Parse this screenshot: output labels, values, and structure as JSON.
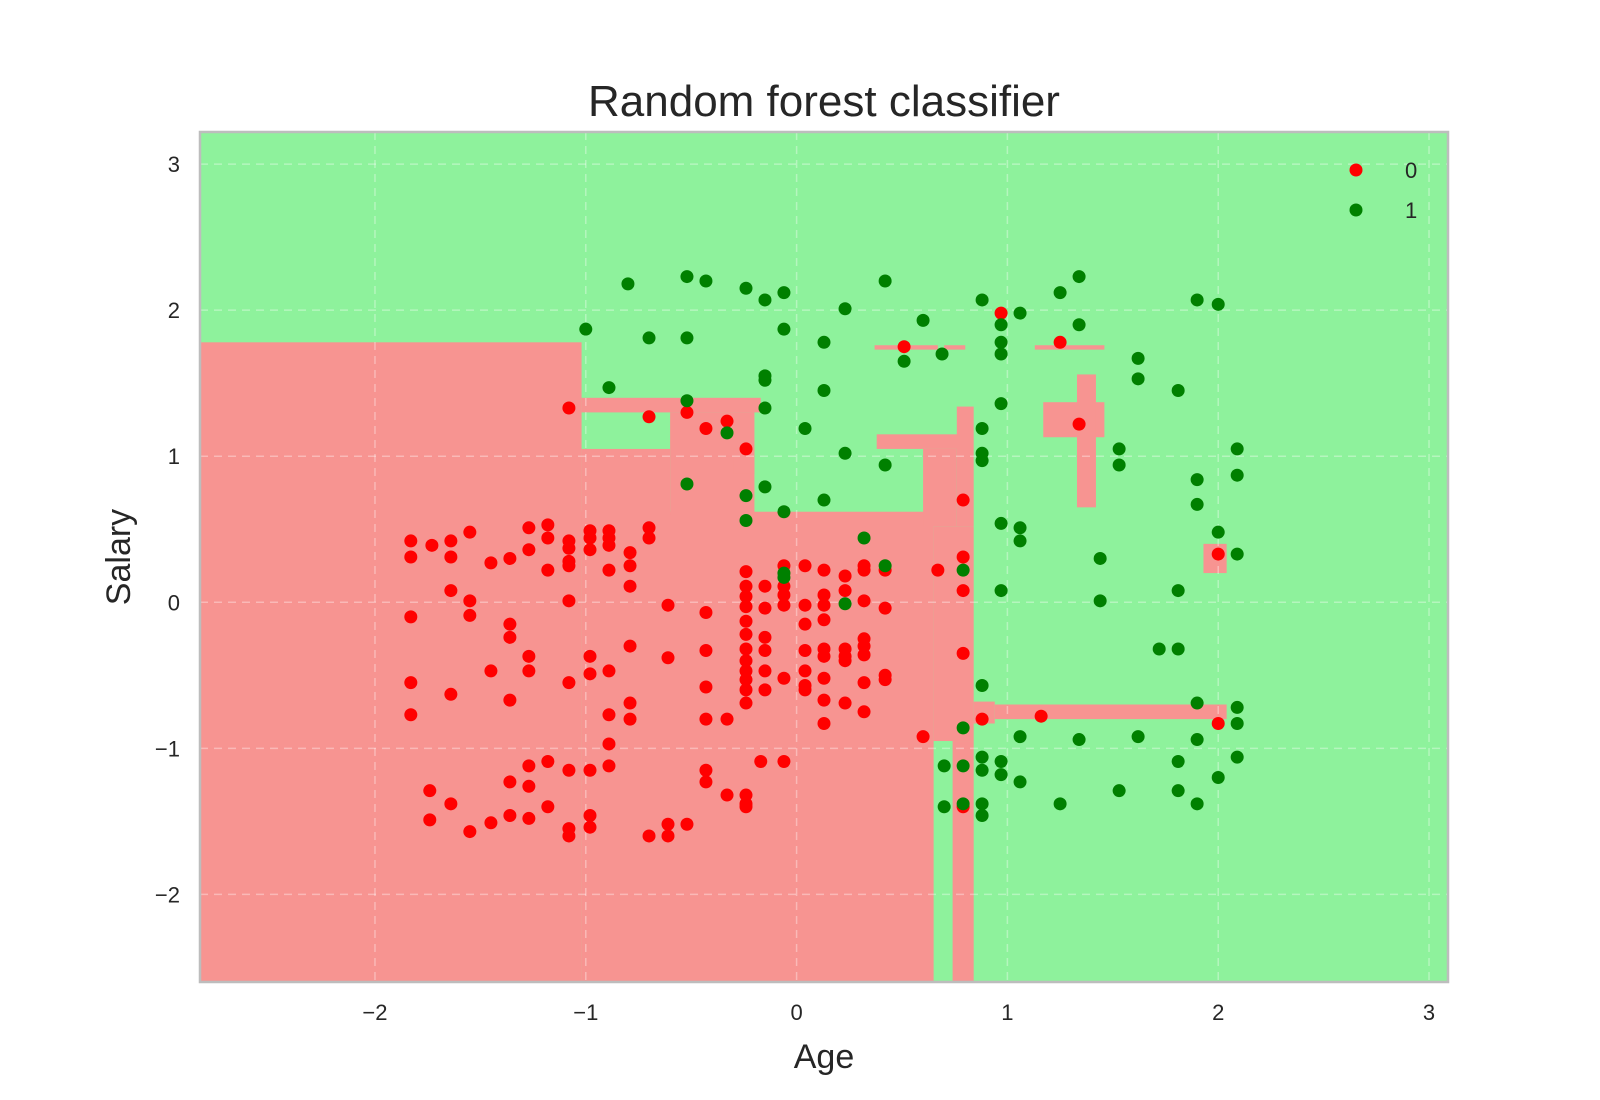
{
  "chart_data": {
    "type": "scatter",
    "title": "Random forest classifier",
    "xlabel": "Age",
    "ylabel": "Salary",
    "xlim": [
      -2.83,
      3.09
    ],
    "ylim": [
      -2.6,
      3.22
    ],
    "x_ticks": [
      -2,
      -1,
      0,
      1,
      2,
      3
    ],
    "y_ticks": [
      -2,
      -1,
      0,
      1,
      2,
      3
    ],
    "x_tick_labels": [
      "−2",
      "−1",
      "0",
      "1",
      "2",
      "3"
    ],
    "y_tick_labels": [
      "−2",
      "−1",
      "0",
      "1",
      "2",
      "3"
    ],
    "grid": true,
    "legend": {
      "position": "top-right",
      "entries": [
        "0",
        "1"
      ]
    },
    "colors": {
      "class_0": "#ff0000",
      "class_1": "#008000",
      "region_0": "#f79491",
      "region_1": "#8ef29c"
    },
    "decision_regions": {
      "class_1_background": "all other area",
      "class_0_rectangles": [
        [
          -2.83,
          -1.02,
          -2.6,
          1.78
        ],
        [
          -1.02,
          0.65,
          -2.6,
          0.6
        ],
        [
          -1.02,
          0.62,
          0.52,
          0.62
        ],
        [
          -1.02,
          -0.6,
          0.6,
          1.05
        ],
        [
          -1.02,
          -0.17,
          1.3,
          1.4
        ],
        [
          -0.6,
          -0.2,
          0.6,
          1.3
        ],
        [
          -0.3,
          -0.2,
          0.88,
          1.05
        ],
        [
          0.38,
          0.8,
          1.05,
          1.15
        ],
        [
          0.6,
          0.76,
          0.52,
          1.05
        ],
        [
          0.76,
          0.84,
          0.52,
          1.34
        ],
        [
          0.65,
          0.84,
          -0.95,
          0.52
        ],
        [
          0.74,
          0.84,
          -2.6,
          -0.95
        ],
        [
          0.84,
          0.94,
          -0.83,
          -0.68
        ],
        [
          0.94,
          2.04,
          -0.8,
          -0.7
        ],
        [
          1.93,
          2.04,
          0.2,
          0.4
        ],
        [
          0.37,
          0.67,
          1.73,
          1.76
        ],
        [
          0.7,
          0.8,
          1.73,
          1.76
        ],
        [
          1.13,
          1.46,
          1.73,
          1.76
        ],
        [
          1.17,
          1.46,
          1.13,
          1.37
        ],
        [
          1.33,
          1.42,
          0.65,
          1.56
        ]
      ]
    },
    "series": [
      {
        "name": "0",
        "points": [
          [
            -1.83,
            0.42
          ],
          [
            -1.83,
            0.31
          ],
          [
            -1.73,
            0.39
          ],
          [
            -1.64,
            0.42
          ],
          [
            -1.64,
            0.31
          ],
          [
            -1.55,
            0.48
          ],
          [
            -1.45,
            0.27
          ],
          [
            -1.36,
            0.3
          ],
          [
            -1.27,
            0.51
          ],
          [
            -1.27,
            0.36
          ],
          [
            -1.18,
            0.53
          ],
          [
            -1.18,
            0.44
          ],
          [
            -1.18,
            0.22
          ],
          [
            -1.08,
            0.42
          ],
          [
            -1.08,
            0.37
          ],
          [
            -1.08,
            0.28
          ],
          [
            -1.08,
            0.25
          ],
          [
            -0.98,
            0.49
          ],
          [
            -0.98,
            0.44
          ],
          [
            -0.98,
            0.36
          ],
          [
            -0.89,
            0.49
          ],
          [
            -0.89,
            0.44
          ],
          [
            -0.89,
            0.39
          ],
          [
            -0.89,
            0.22
          ],
          [
            -0.79,
            0.34
          ],
          [
            -0.79,
            0.25
          ],
          [
            -0.79,
            0.11
          ],
          [
            -0.7,
            0.51
          ],
          [
            -0.7,
            0.44
          ],
          [
            -1.64,
            0.08
          ],
          [
            -1.55,
            0.01
          ],
          [
            -1.55,
            -0.09
          ],
          [
            -1.36,
            -0.15
          ],
          [
            -1.36,
            -0.24
          ],
          [
            -1.08,
            0.01
          ],
          [
            -1.83,
            -0.1
          ],
          [
            -1.83,
            -0.55
          ],
          [
            -1.83,
            -0.77
          ],
          [
            -1.64,
            -0.63
          ],
          [
            -1.45,
            -0.47
          ],
          [
            -1.36,
            -0.67
          ],
          [
            -1.27,
            -0.37
          ],
          [
            -1.27,
            -0.47
          ],
          [
            -1.08,
            -0.55
          ],
          [
            -0.98,
            -0.37
          ],
          [
            -0.98,
            -0.49
          ],
          [
            -0.89,
            -0.47
          ],
          [
            -0.79,
            -0.3
          ],
          [
            -0.61,
            -0.38
          ],
          [
            -0.61,
            -0.02
          ],
          [
            -0.89,
            -0.77
          ],
          [
            -0.79,
            -0.69
          ],
          [
            -0.79,
            -0.8
          ],
          [
            -0.89,
            -0.97
          ],
          [
            -0.43,
            -0.07
          ],
          [
            -0.43,
            -0.33
          ],
          [
            -0.43,
            -0.58
          ],
          [
            -0.43,
            -0.8
          ],
          [
            -0.33,
            -0.8
          ],
          [
            -1.74,
            -1.29
          ],
          [
            -1.74,
            -1.49
          ],
          [
            -1.64,
            -1.38
          ],
          [
            -1.55,
            -1.57
          ],
          [
            -1.45,
            -1.51
          ],
          [
            -1.36,
            -1.23
          ],
          [
            -1.36,
            -1.46
          ],
          [
            -1.27,
            -1.12
          ],
          [
            -1.27,
            -1.26
          ],
          [
            -1.27,
            -1.48
          ],
          [
            -1.18,
            -1.09
          ],
          [
            -1.18,
            -1.4
          ],
          [
            -1.08,
            -1.15
          ],
          [
            -1.08,
            -1.55
          ],
          [
            -1.08,
            -1.6
          ],
          [
            -0.98,
            -1.15
          ],
          [
            -0.98,
            -1.46
          ],
          [
            -0.98,
            -1.54
          ],
          [
            -0.89,
            -1.12
          ],
          [
            -0.7,
            -1.6
          ],
          [
            -0.61,
            -1.52
          ],
          [
            -0.61,
            -1.6
          ],
          [
            -0.52,
            -1.52
          ],
          [
            -0.43,
            -1.15
          ],
          [
            -0.43,
            -1.23
          ],
          [
            -0.33,
            -1.32
          ],
          [
            -0.24,
            -1.32
          ],
          [
            -0.24,
            -1.38
          ],
          [
            -0.24,
            -1.4
          ],
          [
            -0.17,
            -1.09
          ],
          [
            -0.06,
            -1.09
          ],
          [
            -0.24,
            0.21
          ],
          [
            -0.24,
            0.11
          ],
          [
            -0.24,
            0.04
          ],
          [
            -0.24,
            -0.03
          ],
          [
            -0.24,
            -0.13
          ],
          [
            -0.24,
            -0.22
          ],
          [
            -0.24,
            -0.32
          ],
          [
            -0.24,
            -0.4
          ],
          [
            -0.24,
            -0.47
          ],
          [
            -0.24,
            -0.53
          ],
          [
            -0.24,
            -0.6
          ],
          [
            -0.24,
            -0.69
          ],
          [
            -0.15,
            0.11
          ],
          [
            -0.15,
            -0.04
          ],
          [
            -0.15,
            -0.24
          ],
          [
            -0.15,
            -0.33
          ],
          [
            -0.15,
            -0.47
          ],
          [
            -0.15,
            -0.6
          ],
          [
            -0.06,
            0.25
          ],
          [
            -0.06,
            0.11
          ],
          [
            -0.06,
            0.05
          ],
          [
            -0.06,
            -0.02
          ],
          [
            -0.06,
            -0.52
          ],
          [
            0.04,
            0.25
          ],
          [
            0.04,
            -0.02
          ],
          [
            0.04,
            -0.15
          ],
          [
            0.04,
            -0.33
          ],
          [
            0.04,
            -0.47
          ],
          [
            0.04,
            -0.6
          ],
          [
            0.04,
            -0.57
          ],
          [
            0.13,
            0.22
          ],
          [
            0.13,
            0.05
          ],
          [
            0.13,
            -0.02
          ],
          [
            0.13,
            -0.12
          ],
          [
            0.13,
            -0.32
          ],
          [
            0.13,
            -0.37
          ],
          [
            0.13,
            -0.52
          ],
          [
            0.13,
            -0.67
          ],
          [
            0.13,
            -0.83
          ],
          [
            0.23,
            0.18
          ],
          [
            0.23,
            0.08
          ],
          [
            0.23,
            -0.32
          ],
          [
            0.23,
            -0.37
          ],
          [
            0.23,
            -0.4
          ],
          [
            0.23,
            -0.69
          ],
          [
            0.32,
            0.25
          ],
          [
            0.32,
            0.22
          ],
          [
            0.32,
            0.01
          ],
          [
            0.32,
            -0.25
          ],
          [
            0.32,
            -0.3
          ],
          [
            0.32,
            -0.36
          ],
          [
            0.32,
            -0.55
          ],
          [
            0.32,
            -0.75
          ],
          [
            0.42,
            0.22
          ],
          [
            0.42,
            -0.04
          ],
          [
            0.42,
            -0.5
          ],
          [
            0.42,
            -0.53
          ],
          [
            0.6,
            -0.92
          ],
          [
            0.67,
            0.22
          ],
          [
            0.79,
            0.31
          ],
          [
            0.79,
            0.08
          ],
          [
            0.79,
            -0.35
          ],
          [
            0.79,
            0.7
          ],
          [
            0.88,
            -0.8
          ],
          [
            0.79,
            -1.4
          ],
          [
            1.16,
            -0.78
          ],
          [
            2.0,
            -0.83
          ],
          [
            2.0,
            0.33
          ],
          [
            1.34,
            1.22
          ],
          [
            1.25,
            1.78
          ],
          [
            0.97,
            1.98
          ],
          [
            0.51,
            1.75
          ],
          [
            -1.08,
            1.33
          ],
          [
            -0.7,
            1.27
          ],
          [
            -0.52,
            1.3
          ],
          [
            -0.43,
            1.19
          ],
          [
            -0.33,
            1.24
          ],
          [
            -0.24,
            1.05
          ]
        ]
      },
      {
        "name": "1",
        "points": [
          [
            -0.8,
            2.18
          ],
          [
            -0.52,
            2.23
          ],
          [
            -0.43,
            2.2
          ],
          [
            -0.24,
            2.15
          ],
          [
            -0.15,
            2.07
          ],
          [
            -0.06,
            2.12
          ],
          [
            -1.0,
            1.87
          ],
          [
            -0.7,
            1.81
          ],
          [
            -0.52,
            1.81
          ],
          [
            -0.06,
            1.87
          ],
          [
            0.23,
            2.01
          ],
          [
            0.13,
            1.78
          ],
          [
            0.42,
            2.2
          ],
          [
            0.6,
            1.93
          ],
          [
            0.88,
            2.07
          ],
          [
            0.97,
            1.9
          ],
          [
            1.06,
            1.98
          ],
          [
            1.25,
            2.12
          ],
          [
            1.34,
            2.23
          ],
          [
            1.34,
            1.9
          ],
          [
            0.51,
            1.65
          ],
          [
            0.69,
            1.7
          ],
          [
            0.97,
            1.78
          ],
          [
            0.97,
            1.7
          ],
          [
            -0.89,
            1.47
          ],
          [
            -0.52,
            1.38
          ],
          [
            -0.15,
            1.52
          ],
          [
            -0.15,
            1.55
          ],
          [
            0.13,
            1.45
          ],
          [
            -0.15,
            1.33
          ],
          [
            0.04,
            1.19
          ],
          [
            -0.33,
            1.16
          ],
          [
            0.97,
            1.36
          ],
          [
            0.88,
            1.19
          ],
          [
            0.88,
            1.02
          ],
          [
            0.88,
            0.97
          ],
          [
            0.23,
            1.02
          ],
          [
            0.42,
            0.94
          ],
          [
            -0.52,
            0.81
          ],
          [
            -0.24,
            0.73
          ],
          [
            -0.15,
            0.79
          ],
          [
            -0.24,
            0.56
          ],
          [
            -0.06,
            0.62
          ],
          [
            0.13,
            0.7
          ],
          [
            0.32,
            0.44
          ],
          [
            0.42,
            0.25
          ],
          [
            -0.06,
            0.2
          ],
          [
            -0.06,
            0.17
          ],
          [
            0.23,
            -0.01
          ],
          [
            0.79,
            0.22
          ],
          [
            0.97,
            0.54
          ],
          [
            1.06,
            0.51
          ],
          [
            1.06,
            0.42
          ],
          [
            0.97,
            0.08
          ],
          [
            1.62,
            1.67
          ],
          [
            1.62,
            1.53
          ],
          [
            1.81,
            1.45
          ],
          [
            1.53,
            1.05
          ],
          [
            1.53,
            0.94
          ],
          [
            1.9,
            2.07
          ],
          [
            2.0,
            2.04
          ],
          [
            1.9,
            0.84
          ],
          [
            1.9,
            0.67
          ],
          [
            2.09,
            1.05
          ],
          [
            2.09,
            0.87
          ],
          [
            2.0,
            0.48
          ],
          [
            2.09,
            0.33
          ],
          [
            1.44,
            0.3
          ],
          [
            1.44,
            0.01
          ],
          [
            1.81,
            0.08
          ],
          [
            1.72,
            -0.32
          ],
          [
            1.81,
            -0.32
          ],
          [
            0.88,
            -0.57
          ],
          [
            1.9,
            -0.69
          ],
          [
            2.09,
            -0.72
          ],
          [
            2.09,
            -0.83
          ],
          [
            1.06,
            -0.92
          ],
          [
            1.34,
            -0.94
          ],
          [
            1.62,
            -0.92
          ],
          [
            1.9,
            -0.94
          ],
          [
            0.79,
            -0.86
          ],
          [
            0.7,
            -1.12
          ],
          [
            0.79,
            -1.12
          ],
          [
            0.88,
            -1.06
          ],
          [
            0.88,
            -1.15
          ],
          [
            0.97,
            -1.09
          ],
          [
            0.97,
            -1.18
          ],
          [
            1.06,
            -1.23
          ],
          [
            0.7,
            -1.4
          ],
          [
            0.79,
            -1.38
          ],
          [
            0.88,
            -1.38
          ],
          [
            0.88,
            -1.46
          ],
          [
            1.25,
            -1.38
          ],
          [
            1.53,
            -1.29
          ],
          [
            1.81,
            -1.09
          ],
          [
            1.81,
            -1.29
          ],
          [
            1.9,
            -1.38
          ],
          [
            2.0,
            -1.2
          ],
          [
            2.09,
            -1.06
          ]
        ]
      }
    ]
  }
}
